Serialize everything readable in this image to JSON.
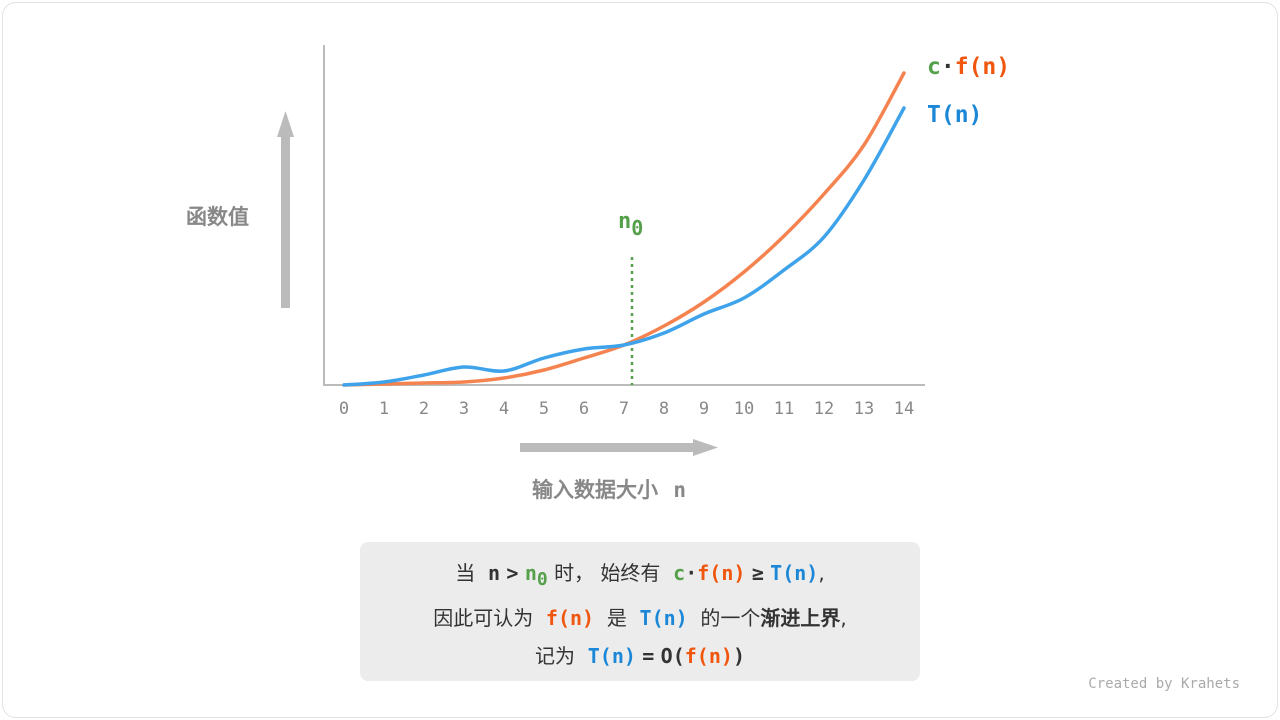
{
  "diagram": {
    "y_label": "函数值",
    "x_label": "输入数据大小",
    "x_label_var": "n",
    "x_ticks": [
      "0",
      "1",
      "2",
      "3",
      "4",
      "5",
      "6",
      "7",
      "8",
      "9",
      "10",
      "11",
      "12",
      "13",
      "14"
    ],
    "n0_label": "n",
    "n0_sub": "0",
    "n0_x": 7.2,
    "legend": {
      "c": "c",
      "dot": "·",
      "f": "f(n)",
      "t": "T(n)"
    },
    "colors": {
      "cf": "#f5834f",
      "t": "#3ea3ea",
      "n0": "#56a04c",
      "axis": "#bbbbbb"
    },
    "series": {
      "cf": [
        0,
        0.1,
        0.2,
        0.3,
        0.7,
        1.5,
        2.7,
        4.0,
        5.9,
        8.3,
        11.3,
        14.9,
        19.1,
        24.0,
        31.2
      ],
      "t": [
        0,
        0.3,
        1.0,
        1.8,
        1.4,
        2.7,
        3.6,
        4.0,
        5.2,
        7.1,
        8.7,
        11.5,
        14.8,
        20.5,
        27.7
      ]
    }
  },
  "note": {
    "l1": {
      "a": "当",
      "n": "n",
      "gt": ">",
      "n0": "n",
      "sub": "0",
      "b": "时，",
      "c": "始终有",
      "cc": "c",
      "dot": "·",
      "f": "f(n)",
      "ge": "≥",
      "t": "T(n)",
      "end": ","
    },
    "l2": {
      "a": "因此可认为",
      "f": "f(n)",
      "b": "是",
      "t": "T(n)",
      "c": "的一个",
      "bold": "渐进上界",
      "end": ","
    },
    "l3": {
      "a": "记为",
      "t": "T(n)",
      "eq": "=",
      "o": "O(",
      "f": "f(n)",
      "close": ")"
    }
  },
  "credit": "Created by Krahets"
}
